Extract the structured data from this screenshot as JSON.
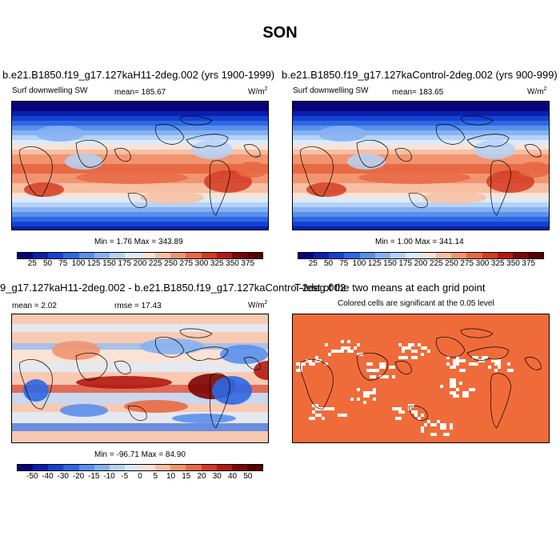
{
  "season": "SON",
  "panels": {
    "test": {
      "title": "b.e21.B1850.f19_g17.127kaH11-2deg.002 (yrs 1900-1999)",
      "variable": "Surf downwelling SW",
      "mean_label": "mean= 185.67",
      "units": "W/m",
      "units_sup": "2",
      "minmax": "Min =   1.76 Max = 343.89"
    },
    "control": {
      "title": "b.e21.B1850.f19_g17.127kaControl-2deg.002 (yrs 900-999)",
      "variable": "Surf downwelling SW",
      "mean_label": "mean= 183.65",
      "units": "W/m",
      "units_sup": "2",
      "minmax": "Min =   1.00 Max = 341.14"
    },
    "diff": {
      "title": "9_g17.127kaH11-2deg.002 - b.e21.B1850.f19_g17.127kaControl-2deg.002",
      "mean_label": "mean =   2.02",
      "rmse_label": "rmse =  17.43",
      "units": "W/m",
      "units_sup": "2",
      "minmax": "Min = -96.71 Max =  84.90"
    },
    "ttest": {
      "title": "T-test of the two means at each grid point",
      "subtitle": "Colored cells are significant at the 0.05 level",
      "color": "#f06b3a"
    }
  },
  "colorbars": {
    "absolute": {
      "labels": [
        "25",
        "50",
        "75",
        "100",
        "125",
        "150",
        "175",
        "200",
        "225",
        "250",
        "275",
        "300",
        "325",
        "350",
        "375"
      ],
      "colors": [
        "#08047a",
        "#0a1fae",
        "#1543d0",
        "#2d68e6",
        "#5990ec",
        "#86b2f1",
        "#b5d2f7",
        "#dcebfb",
        "#fbe2d4",
        "#f7bfa3",
        "#f19570",
        "#e86a45",
        "#d43b22",
        "#b21a12",
        "#7c0606",
        "#590000"
      ]
    },
    "difference": {
      "labels": [
        "-50",
        "-40",
        "-30",
        "-20",
        "-15",
        "-10",
        "-5",
        "0",
        "5",
        "10",
        "15",
        "20",
        "30",
        "40",
        "50"
      ],
      "colors": [
        "#08047a",
        "#0a1fae",
        "#1543d0",
        "#2d68e6",
        "#5990ec",
        "#86b2f1",
        "#b5d2f7",
        "#dcebfb",
        "#fbe2d4",
        "#f7bfa3",
        "#f19570",
        "#e86a45",
        "#d43b22",
        "#b21a12",
        "#7c0606",
        "#590000"
      ]
    }
  }
}
